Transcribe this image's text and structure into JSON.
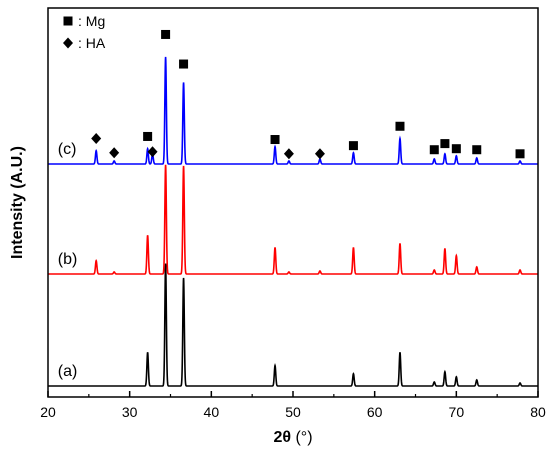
{
  "chart_data": {
    "type": "line",
    "xlabel_main": "2θ",
    "xlabel_unit": " (°)",
    "ylabel": "Intensity (A.U.)",
    "xlim": [
      20,
      80
    ],
    "xticks": [
      20,
      30,
      40,
      50,
      60,
      70,
      80
    ],
    "grid": false,
    "legend": {
      "placement": "top-left",
      "entries": [
        {
          "marker": "square",
          "label": ": Mg"
        },
        {
          "marker": "diamond",
          "label": ": HA"
        }
      ]
    },
    "series": [
      {
        "label": "(a)",
        "color": "#000000",
        "offset": 0,
        "peaks": [
          {
            "x": 32.2,
            "h": 0.33
          },
          {
            "x": 34.4,
            "h": 1.2
          },
          {
            "x": 36.6,
            "h": 1.06
          },
          {
            "x": 47.8,
            "h": 0.2
          },
          {
            "x": 57.4,
            "h": 0.12
          },
          {
            "x": 63.1,
            "h": 0.33
          },
          {
            "x": 67.3,
            "h": 0.04
          },
          {
            "x": 68.6,
            "h": 0.14
          },
          {
            "x": 70.0,
            "h": 0.09
          },
          {
            "x": 72.5,
            "h": 0.06
          },
          {
            "x": 77.8,
            "h": 0.03
          }
        ]
      },
      {
        "label": "(b)",
        "color": "#ff0000",
        "offset": 1,
        "peaks": [
          {
            "x": 25.9,
            "h": 0.13
          },
          {
            "x": 28.1,
            "h": 0.02
          },
          {
            "x": 32.2,
            "h": 0.38
          },
          {
            "x": 34.4,
            "h": 1.07
          },
          {
            "x": 36.6,
            "h": 1.06
          },
          {
            "x": 47.8,
            "h": 0.26
          },
          {
            "x": 49.5,
            "h": 0.02
          },
          {
            "x": 53.3,
            "h": 0.03
          },
          {
            "x": 57.4,
            "h": 0.26
          },
          {
            "x": 63.1,
            "h": 0.3
          },
          {
            "x": 67.3,
            "h": 0.04
          },
          {
            "x": 68.6,
            "h": 0.25
          },
          {
            "x": 70.0,
            "h": 0.18
          },
          {
            "x": 72.5,
            "h": 0.07
          },
          {
            "x": 77.8,
            "h": 0.04
          }
        ]
      },
      {
        "label": "(c)",
        "color": "#0000ff",
        "offset": 2,
        "peaks": [
          {
            "x": 25.9,
            "h": 0.13
          },
          {
            "x": 28.1,
            "h": 0.03
          },
          {
            "x": 32.2,
            "h": 0.15
          },
          {
            "x": 32.8,
            "h": 0.1
          },
          {
            "x": 34.4,
            "h": 1.05
          },
          {
            "x": 36.6,
            "h": 0.8
          },
          {
            "x": 47.8,
            "h": 0.17
          },
          {
            "x": 49.5,
            "h": 0.03
          },
          {
            "x": 53.3,
            "h": 0.05
          },
          {
            "x": 57.4,
            "h": 0.11
          },
          {
            "x": 63.1,
            "h": 0.25
          },
          {
            "x": 67.3,
            "h": 0.05
          },
          {
            "x": 68.6,
            "h": 0.1
          },
          {
            "x": 70.0,
            "h": 0.08
          },
          {
            "x": 72.5,
            "h": 0.06
          },
          {
            "x": 77.8,
            "h": 0.03
          }
        ]
      }
    ],
    "annotations": [
      {
        "marker": "diamond",
        "x": 25.9,
        "y": 2.25
      },
      {
        "marker": "diamond",
        "x": 28.1,
        "y": 2.11
      },
      {
        "marker": "square",
        "x": 32.2,
        "y": 2.27
      },
      {
        "marker": "diamond",
        "x": 32.8,
        "y": 2.12
      },
      {
        "marker": "square",
        "x": 34.4,
        "y": 3.27
      },
      {
        "marker": "square",
        "x": 36.6,
        "y": 2.98
      },
      {
        "marker": "square",
        "x": 47.8,
        "y": 2.24
      },
      {
        "marker": "diamond",
        "x": 49.5,
        "y": 2.1
      },
      {
        "marker": "diamond",
        "x": 53.3,
        "y": 2.1
      },
      {
        "marker": "square",
        "x": 57.4,
        "y": 2.18
      },
      {
        "marker": "square",
        "x": 63.1,
        "y": 2.37
      },
      {
        "marker": "square",
        "x": 67.3,
        "y": 2.14
      },
      {
        "marker": "square",
        "x": 68.6,
        "y": 2.2
      },
      {
        "marker": "square",
        "x": 70.0,
        "y": 2.15
      },
      {
        "marker": "square",
        "x": 72.5,
        "y": 2.14
      },
      {
        "marker": "square",
        "x": 77.8,
        "y": 2.1
      }
    ]
  }
}
